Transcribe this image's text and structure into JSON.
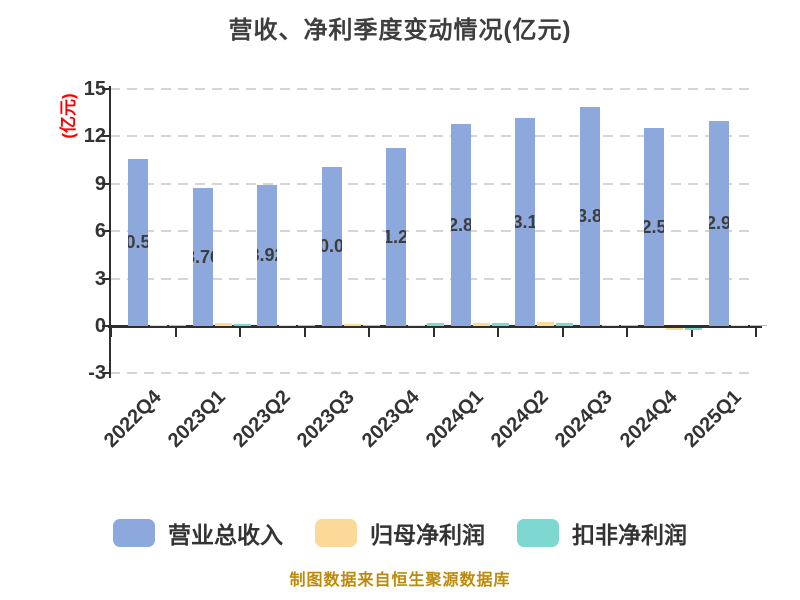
{
  "title": "营收、净利季度变动情况(亿元)",
  "y_axis": {
    "unit_label": "(亿元)",
    "unit_label_color": "#ff0000",
    "ticks": [
      15,
      12,
      9,
      6,
      3,
      0,
      -3
    ]
  },
  "footer": {
    "text": "制图数据来自恒生聚源数据库",
    "color": "#bd8a0b"
  },
  "colors": {
    "revenue_bar": "#8ca8dc",
    "net_profit_bar": "#fad999",
    "net_profit_excl_bar": "#7ed7d1",
    "grid": "#d5d5d5",
    "axis": "#2f2f2f",
    "title_text": "#3e3e3e",
    "tick_text": "#333333",
    "value_label_text": "#3d3d3d"
  },
  "chart_data": {
    "type": "bar",
    "title": "营收、净利季度变动情况(亿元)",
    "xlabel": "",
    "ylabel": "(亿元)",
    "ylim": [
      -3,
      15
    ],
    "y_ticks": [
      15,
      12,
      9,
      6,
      3,
      0,
      -3
    ],
    "grid": true,
    "grid_style": "dashed",
    "legend_position": "bottom",
    "value_labels_note": "only 营业总收入 series labeled; labels clipped to bar width",
    "categories": [
      "2022Q4",
      "2023Q1",
      "2023Q2",
      "2023Q3",
      "2023Q4",
      "2024Q1",
      "2024Q2",
      "2024Q3",
      "2024Q4",
      "2025Q1"
    ],
    "series": [
      {
        "name": "营业总收入",
        "color": "#8ca8dc",
        "values": [
          10.56,
          8.76,
          8.92,
          10.07,
          11.27,
          12.81,
          13.16,
          13.85,
          12.52,
          12.97
        ]
      },
      {
        "name": "归母净利润",
        "color": "#fad999",
        "values": [
          0.04,
          0.17,
          0.06,
          0.13,
          0.09,
          0.19,
          0.25,
          0.06,
          -0.13,
          0.05
        ]
      },
      {
        "name": "扣非净利润",
        "color": "#7ed7d1",
        "values": [
          0.06,
          0.15,
          0.08,
          0.06,
          0.19,
          0.22,
          0.18,
          0.08,
          -0.11,
          0.04
        ]
      }
    ]
  }
}
